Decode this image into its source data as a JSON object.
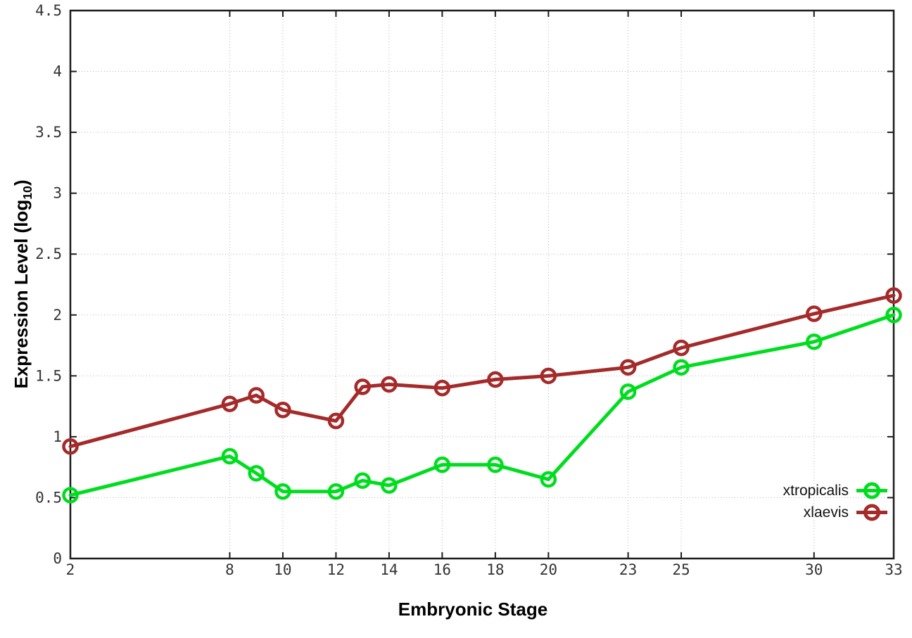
{
  "chart_data": {
    "type": "line",
    "title": "",
    "xlabel": "Embryonic Stage",
    "ylabel": "Expression Level (log10)",
    "ylabel_parts": {
      "main": "Expression Level (log",
      "sub": "10",
      "end": ")"
    },
    "xlim": [
      2,
      33
    ],
    "ylim": [
      0,
      4.5
    ],
    "grid": true,
    "grid_style": "dotted",
    "legend_position": "bottom-right",
    "x_ticks": [
      "2",
      "8",
      "10",
      "12",
      "14",
      "16",
      "18",
      "20",
      "23",
      "25",
      "30",
      "33"
    ],
    "y_ticks": [
      "0",
      "0.5",
      "1",
      "1.5",
      "2",
      "2.5",
      "3",
      "3.5",
      "4",
      "4.5"
    ],
    "x": [
      2,
      8,
      9,
      10,
      12,
      13,
      14,
      16,
      18,
      20,
      23,
      25,
      30,
      33
    ],
    "series": [
      {
        "name": "xtropicalis",
        "color": "#00dd1e",
        "marker": "open-circle",
        "values": [
          0.52,
          0.84,
          0.7,
          0.55,
          0.55,
          0.64,
          0.6,
          0.77,
          0.77,
          0.65,
          1.37,
          1.57,
          1.78,
          2.0
        ]
      },
      {
        "name": "xlaevis",
        "color": "#a52a2a",
        "marker": "open-circle",
        "values": [
          0.92,
          1.27,
          1.34,
          1.22,
          1.13,
          1.41,
          1.43,
          1.4,
          1.47,
          1.5,
          1.57,
          1.73,
          2.01,
          2.16
        ]
      }
    ],
    "colors": {
      "axis": "#1c1c1c",
      "grid": "#b5b5b5",
      "tick_text": "#333333",
      "background": "#ffffff"
    }
  }
}
